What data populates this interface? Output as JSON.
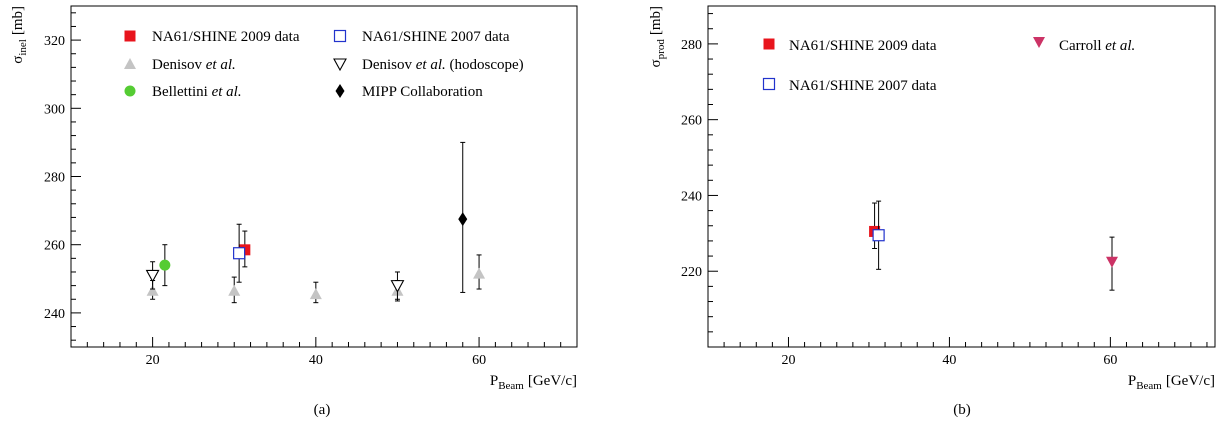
{
  "chart_data": [
    {
      "type": "scatter",
      "panel_label": "(a)",
      "xlabel": {
        "main": "P",
        "sub": "Beam",
        "unit": "[GeV/c]"
      },
      "ylabel": {
        "main": "σ",
        "sub": "inel",
        "unit": "[mb]"
      },
      "xlim": [
        10,
        72
      ],
      "ylim": [
        230,
        330
      ],
      "xticks": [
        20,
        40,
        60
      ],
      "yticks": [
        240,
        260,
        280,
        300,
        320
      ],
      "xminor_step": 2,
      "yminor_step": 4,
      "grid": false,
      "legend_position": "top",
      "series": [
        {
          "name": "NA61/SHINE 2009 data",
          "marker": "square-filled",
          "color": "#e8141c",
          "points": [
            {
              "x": 31.3,
              "y": 258.5,
              "ylo": 253.5,
              "yhi": 264.0
            }
          ]
        },
        {
          "name": "NA61/SHINE 2007 data",
          "marker": "square-open",
          "color": "#2233cc",
          "points": [
            {
              "x": 30.6,
              "y": 257.5,
              "ylo": 249.0,
              "yhi": 266.0
            }
          ]
        },
        {
          "name": "Denisov et al.",
          "name_plain": "Denisov ",
          "name_italic": "et al.",
          "name_tail": "",
          "marker": "triangle-up-filled",
          "color": "#c4c4c4",
          "points": [
            {
              "x": 20.0,
              "y": 246.5,
              "ylo": 244.0,
              "yhi": 249.5
            },
            {
              "x": 30.0,
              "y": 246.5,
              "ylo": 243.0,
              "yhi": 250.5
            },
            {
              "x": 40.0,
              "y": 245.5,
              "ylo": 243.0,
              "yhi": 249.0
            },
            {
              "x": 50.0,
              "y": 246.5,
              "ylo": 243.5,
              "yhi": 249.5
            },
            {
              "x": 60.0,
              "y": 251.5,
              "ylo": 247.0,
              "yhi": 257.0
            }
          ]
        },
        {
          "name": "Denisov et al. (hodoscope)",
          "name_plain": "Denisov ",
          "name_italic": "et al.",
          "name_tail": " (hodoscope)",
          "marker": "triangle-down-open",
          "color": "#000000",
          "points": [
            {
              "x": 20.0,
              "y": 251.0,
              "ylo": 247.0,
              "yhi": 255.0
            },
            {
              "x": 50.0,
              "y": 248.0,
              "ylo": 244.0,
              "yhi": 252.0
            }
          ]
        },
        {
          "name": "Bellettini et al.",
          "name_plain": "Bellettini ",
          "name_italic": "et al.",
          "name_tail": "",
          "marker": "circle-filled",
          "color": "#55cc33",
          "points": [
            {
              "x": 21.5,
              "y": 254.0,
              "ylo": 248.0,
              "yhi": 260.0
            }
          ]
        },
        {
          "name": "MIPP Collaboration",
          "marker": "diamond-filled",
          "color": "#000000",
          "points": [
            {
              "x": 58.0,
              "y": 267.5,
              "ylo": 246.0,
              "yhi": 290.0
            }
          ]
        }
      ]
    },
    {
      "type": "scatter",
      "panel_label": "(b)",
      "xlabel": {
        "main": "P",
        "sub": "Beam",
        "unit": "[GeV/c]"
      },
      "ylabel": {
        "main": "σ",
        "sub": "prod",
        "unit": "[mb]"
      },
      "xlim": [
        10,
        73
      ],
      "ylim": [
        200,
        290
      ],
      "xticks": [
        20,
        40,
        60
      ],
      "yticks": [
        220,
        240,
        260,
        280
      ],
      "xminor_step": 2,
      "yminor_step": 4,
      "grid": false,
      "legend_position": "top",
      "series": [
        {
          "name": "NA61/SHINE 2009 data",
          "marker": "square-filled",
          "color": "#e8141c",
          "points": [
            {
              "x": 30.7,
              "y": 230.5,
              "ylo": 226.0,
              "yhi": 238.0
            }
          ]
        },
        {
          "name": "NA61/SHINE 2007 data",
          "marker": "square-open",
          "color": "#2233cc",
          "points": [
            {
              "x": 31.2,
              "y": 229.5,
              "ylo": 220.5,
              "yhi": 238.5
            }
          ]
        },
        {
          "name": "Carroll et al.",
          "name_plain": "Carroll ",
          "name_italic": "et al.",
          "name_tail": "",
          "marker": "triangle-down-filled",
          "color": "#cc3366",
          "points": [
            {
              "x": 60.2,
              "y": 222.5,
              "ylo": 215.0,
              "yhi": 229.0
            }
          ]
        }
      ]
    }
  ]
}
